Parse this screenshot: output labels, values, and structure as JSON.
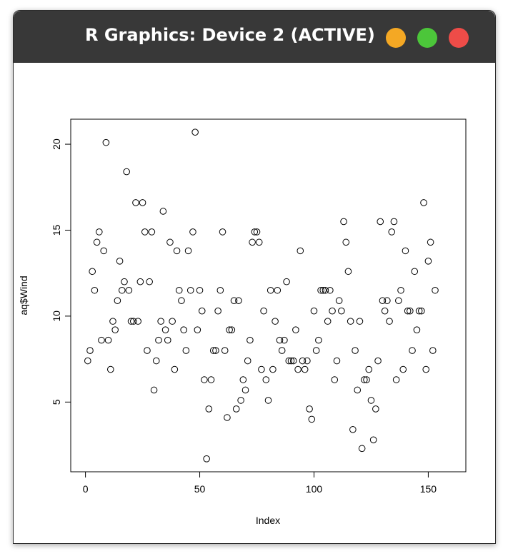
{
  "window": {
    "title": "R Graphics: Device 2 (ACTIVE)",
    "buttons": [
      {
        "name": "minimize",
        "color": "#f4a824"
      },
      {
        "name": "maximize",
        "color": "#4cc63a"
      },
      {
        "name": "close",
        "color": "#ee4c48"
      }
    ]
  },
  "chart_data": {
    "type": "scatter",
    "title": "",
    "xlabel": "Index",
    "ylabel": "aq$Wind",
    "xlim": [
      0,
      160
    ],
    "ylim": [
      1.7,
      20.7
    ],
    "x_ticks": [
      0,
      50,
      100,
      150
    ],
    "y_ticks": [
      5,
      10,
      15,
      20
    ],
    "grid": false,
    "point_style": "open-circle",
    "x": [
      1,
      2,
      3,
      4,
      5,
      6,
      7,
      8,
      9,
      10,
      11,
      12,
      13,
      14,
      15,
      16,
      17,
      18,
      19,
      20,
      21,
      22,
      23,
      24,
      25,
      26,
      27,
      28,
      29,
      30,
      31,
      32,
      33,
      34,
      35,
      36,
      37,
      38,
      39,
      40,
      41,
      42,
      43,
      44,
      45,
      46,
      47,
      48,
      49,
      50,
      51,
      52,
      53,
      54,
      55,
      56,
      57,
      58,
      59,
      60,
      61,
      62,
      63,
      64,
      65,
      66,
      67,
      68,
      69,
      70,
      71,
      72,
      73,
      74,
      75,
      76,
      77,
      78,
      79,
      80,
      81,
      82,
      83,
      84,
      85,
      86,
      87,
      88,
      89,
      90,
      91,
      92,
      93,
      94,
      95,
      96,
      97,
      98,
      99,
      100,
      101,
      102,
      103,
      104,
      105,
      106,
      107,
      108,
      109,
      110,
      111,
      112,
      113,
      114,
      115,
      116,
      117,
      118,
      119,
      120,
      121,
      122,
      123,
      124,
      125,
      126,
      127,
      128,
      129,
      130,
      131,
      132,
      133,
      134,
      135,
      136,
      137,
      138,
      139,
      140,
      141,
      142,
      143,
      144,
      145,
      146,
      147,
      148,
      149,
      150,
      151,
      152,
      153
    ],
    "y": [
      7.4,
      8.0,
      12.6,
      11.5,
      14.3,
      14.9,
      8.6,
      13.8,
      20.1,
      8.6,
      6.9,
      9.7,
      9.2,
      10.9,
      13.2,
      11.5,
      12.0,
      18.4,
      11.5,
      9.7,
      9.7,
      16.6,
      9.7,
      12.0,
      16.6,
      14.9,
      8.0,
      12.0,
      14.9,
      5.7,
      7.4,
      8.6,
      9.7,
      16.1,
      9.2,
      8.6,
      14.3,
      9.7,
      6.9,
      13.8,
      11.5,
      10.9,
      9.2,
      8.0,
      13.8,
      11.5,
      14.9,
      20.7,
      9.2,
      11.5,
      10.3,
      6.3,
      1.7,
      4.6,
      6.3,
      8.0,
      8.0,
      10.3,
      11.5,
      14.9,
      8.0,
      4.1,
      9.2,
      9.2,
      10.9,
      4.6,
      10.9,
      5.1,
      6.3,
      5.7,
      7.4,
      8.6,
      14.3,
      14.9,
      14.9,
      14.3,
      6.9,
      10.3,
      6.3,
      5.1,
      11.5,
      6.9,
      9.7,
      11.5,
      8.6,
      8.0,
      8.6,
      12.0,
      7.4,
      7.4,
      7.4,
      9.2,
      6.9,
      13.8,
      7.4,
      6.9,
      7.4,
      4.6,
      4.0,
      10.3,
      8.0,
      8.6,
      11.5,
      11.5,
      11.5,
      9.7,
      11.5,
      10.3,
      6.3,
      7.4,
      10.9,
      10.3,
      15.5,
      14.3,
      12.6,
      9.7,
      3.4,
      8.0,
      5.7,
      9.7,
      2.3,
      6.3,
      6.3,
      6.9,
      5.1,
      2.8,
      4.6,
      7.4,
      15.5,
      10.9,
      10.3,
      10.9,
      9.7,
      14.9,
      15.5,
      6.3,
      10.9,
      11.5,
      6.9,
      13.8,
      10.3,
      10.3,
      8.0,
      12.6,
      9.2,
      10.3,
      10.3,
      16.6,
      6.9,
      13.2,
      14.3,
      8.0,
      11.5
    ]
  }
}
